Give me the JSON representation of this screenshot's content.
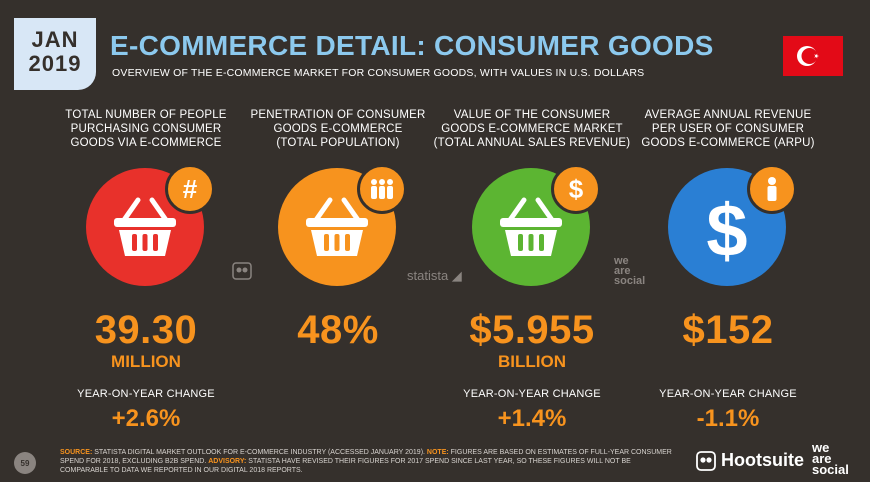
{
  "header": {
    "month": "JAN",
    "year": "2019",
    "title": "E-COMMERCE DETAIL: CONSUMER GOODS",
    "subtitle": "OVERVIEW OF THE E-COMMERCE MARKET FOR CONSUMER GOODS, WITH VALUES IN U.S. DOLLARS",
    "flag_colors": {
      "field": "#e30a17",
      "emblem": "#ffffff"
    }
  },
  "stats": [
    {
      "label_lines": [
        "TOTAL NUMBER OF PEOPLE",
        "PURCHASING CONSUMER",
        "GOODS VIA E-COMMERCE"
      ],
      "value": "39.30",
      "unit": "MILLION",
      "yoy_label": "YEAR-ON-YEAR CHANGE",
      "yoy": "+2.6%",
      "circle_color": "#e8312b",
      "icon": "basket-icon",
      "badge_icon": "hash-icon",
      "badge_glyph": "#"
    },
    {
      "label_lines": [
        "PENETRATION OF CONSUMER",
        "GOODS E-COMMERCE",
        "(TOTAL POPULATION)"
      ],
      "value": "48%",
      "unit": "",
      "yoy_label": "",
      "yoy": "",
      "circle_color": "#f7931e",
      "icon": "basket-icon",
      "badge_icon": "people-icon",
      "badge_glyph": ""
    },
    {
      "label_lines": [
        "VALUE OF THE CONSUMER",
        "GOODS E-COMMERCE MARKET",
        "(TOTAL ANNUAL SALES REVENUE)"
      ],
      "value": "$5.955",
      "unit": "BILLION",
      "yoy_label": "YEAR-ON-YEAR CHANGE",
      "yoy": "+1.4%",
      "circle_color": "#5cb532",
      "icon": "basket-icon",
      "badge_icon": "dollar-icon",
      "badge_glyph": "$"
    },
    {
      "label_lines": [
        "AVERAGE ANNUAL REVENUE",
        "PER USER OF CONSUMER",
        "GOODS E-COMMERCE (ARPU)"
      ],
      "value": "$152",
      "unit": "",
      "yoy_label": "YEAR-ON-YEAR CHANGE",
      "yoy": "-1.1%",
      "circle_color": "#2a7fd4",
      "icon": "dollar-icon",
      "badge_icon": "person-icon",
      "badge_glyph": ""
    }
  ],
  "watermarks": {
    "statista": "statista",
    "we_are_social": [
      "we",
      "are",
      "social"
    ]
  },
  "footer": {
    "page_number": "59",
    "source_key": "SOURCE:",
    "source_text": " STATISTA DIGITAL MARKET OUTLOOK FOR E-COMMERCE INDUSTRY (ACCESSED JANUARY 2019). ",
    "note_key": "NOTE:",
    "note_text": " FIGURES ARE BASED ON ESTIMATES OF FULL-YEAR CONSUMER SPEND FOR 2018, EXCLUDING B2B SPEND. ",
    "advisory_key": "ADVISORY:",
    "advisory_text": " STATISTA HAVE REVISED THEIR FIGURES FOR 2017 SPEND SINCE LAST YEAR, SO THESE FIGURES WILL NOT BE COMPARABLE TO DATA WE REPORTED IN OUR DIGITAL 2018 REPORTS.",
    "hootsuite": "Hootsuite",
    "we_are_social": [
      "we",
      "are",
      "social"
    ]
  }
}
